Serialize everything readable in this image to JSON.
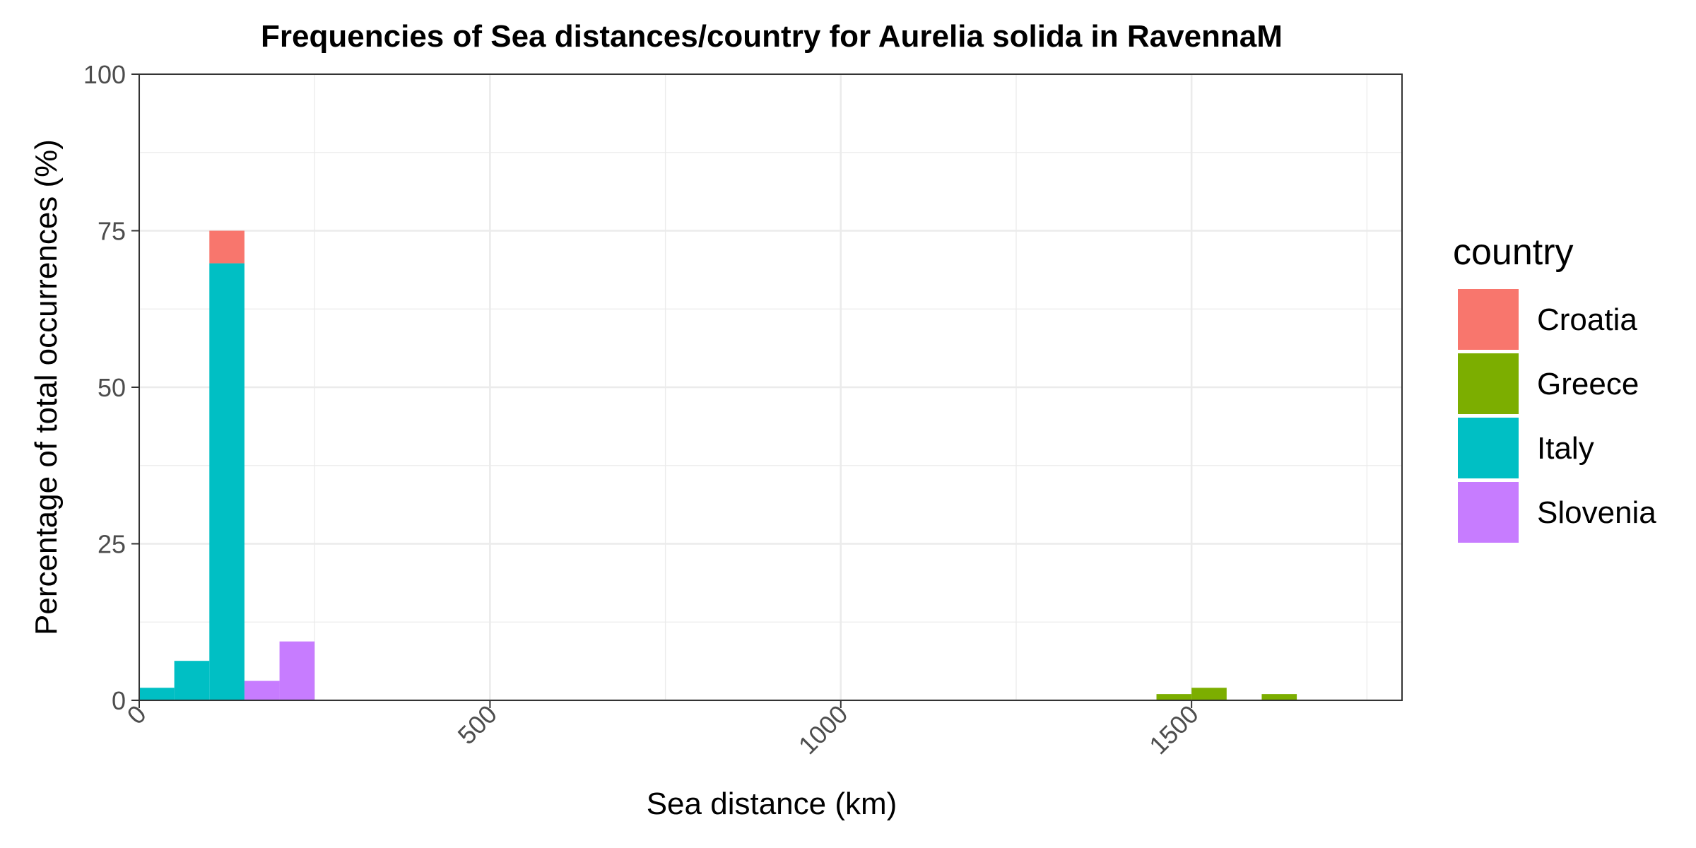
{
  "chart_data": {
    "type": "bar",
    "stacked": true,
    "title": "Frequencies of Sea distances/country for Aurelia solida in RavennaM",
    "xlabel": "Sea distance (km)",
    "ylabel": "Percentage of total occurrences (%)",
    "xlim": [
      0,
      1800
    ],
    "ylim": [
      0,
      100
    ],
    "bin_width": 50,
    "x_ticks": [
      0,
      500,
      1000,
      1500
    ],
    "x_tick_labels": [
      "0",
      "500",
      "1000",
      "1500"
    ],
    "y_ticks": [
      0,
      25,
      50,
      75,
      100
    ],
    "y_tick_labels": [
      "0",
      "25",
      "50",
      "75",
      "100"
    ],
    "grid": true,
    "legend": {
      "title": "country",
      "position": "right"
    },
    "colors": {
      "Croatia": "#F8766D",
      "Greece": "#7CAE00",
      "Italy": "#00BFC4",
      "Slovenia": "#C77CFF"
    },
    "series": [
      {
        "name": "Croatia",
        "bars": [
          {
            "x_start": 100,
            "x_end": 150,
            "value": 5.2
          }
        ]
      },
      {
        "name": "Greece",
        "bars": [
          {
            "x_start": 1450,
            "x_end": 1500,
            "value": 1.0
          },
          {
            "x_start": 1500,
            "x_end": 1550,
            "value": 2.0
          },
          {
            "x_start": 1600,
            "x_end": 1650,
            "value": 1.0
          }
        ]
      },
      {
        "name": "Italy",
        "bars": [
          {
            "x_start": 0,
            "x_end": 50,
            "value": 2.0
          },
          {
            "x_start": 50,
            "x_end": 100,
            "value": 6.3
          },
          {
            "x_start": 100,
            "x_end": 150,
            "value": 69.8
          }
        ]
      },
      {
        "name": "Slovenia",
        "bars": [
          {
            "x_start": 150,
            "x_end": 200,
            "value": 3.1
          },
          {
            "x_start": 200,
            "x_end": 250,
            "value": 9.4
          }
        ]
      }
    ]
  }
}
